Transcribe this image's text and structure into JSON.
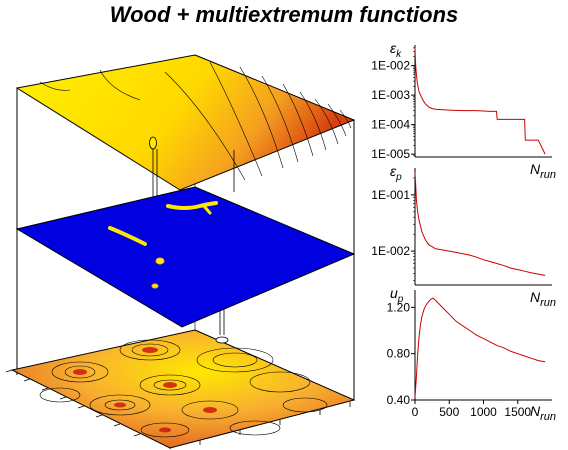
{
  "title": "Wood + multiextremum functions",
  "colors": {
    "surface_yellow": "#ffe800",
    "surface_orange": "#f08a1a",
    "surface_red": "#d84010",
    "plane_blue": "#0000e0",
    "curve_red": "#cc0000"
  },
  "chart_data": [
    {
      "type": "line",
      "panel": "top",
      "ylabel": "εk",
      "ylabel_main": "ε",
      "ylabel_sub": "k",
      "xlabel": "N",
      "xlabel_sub": "run",
      "y_scale": "log",
      "ylim": [
        8e-06,
        0.05
      ],
      "yticks": [
        0.01,
        0.001,
        0.0001,
        1e-05
      ],
      "ytick_labels": [
        "1E-002",
        "1E-003",
        "1E-004",
        "1E-005"
      ],
      "xlim": [
        0,
        2000
      ],
      "series": [
        {
          "x": [
            0,
            5,
            10,
            20,
            30,
            40,
            50,
            60,
            80,
            100,
            130,
            160,
            200,
            250,
            300,
            400,
            500,
            700,
            800,
            900,
            1000,
            1100,
            1190,
            1200,
            1400,
            1500,
            1600,
            1610,
            1800,
            1900
          ],
          "y": [
            0.04,
            0.02,
            0.01,
            0.005,
            0.003,
            0.0022,
            0.0017,
            0.0013,
            0.001,
            0.0008,
            0.0006,
            0.00048,
            0.0004,
            0.00035,
            0.00033,
            0.00032,
            0.00031,
            0.0003,
            0.0003,
            0.0003,
            0.00029,
            0.00028,
            0.00028,
            0.00015,
            0.00015,
            0.00015,
            0.00015,
            3e-05,
            3e-05,
            1e-05
          ]
        }
      ]
    },
    {
      "type": "line",
      "panel": "middle",
      "ylabel": "εp",
      "ylabel_main": "ε",
      "ylabel_sub": "p",
      "xlabel": "N",
      "xlabel_sub": "run",
      "y_scale": "log",
      "ylim": [
        0.0025,
        0.3
      ],
      "yticks": [
        0.1,
        0.01
      ],
      "ytick_labels": [
        "1E-001",
        "1E-002"
      ],
      "xlim": [
        0,
        2000
      ],
      "series": [
        {
          "x": [
            0,
            10,
            20,
            40,
            60,
            80,
            100,
            150,
            200,
            250,
            300,
            400,
            500,
            600,
            700,
            800,
            900,
            1000,
            1100,
            1200,
            1300,
            1400,
            1500,
            1600,
            1700,
            1800,
            1900
          ],
          "y": [
            0.25,
            0.15,
            0.08,
            0.05,
            0.035,
            0.028,
            0.022,
            0.016,
            0.013,
            0.012,
            0.011,
            0.0105,
            0.01,
            0.0095,
            0.009,
            0.0085,
            0.0078,
            0.007,
            0.0065,
            0.006,
            0.0055,
            0.005,
            0.0047,
            0.0044,
            0.0041,
            0.0039,
            0.0037
          ]
        }
      ]
    },
    {
      "type": "line",
      "panel": "bottom",
      "ylabel": "up",
      "ylabel_main": "u",
      "ylabel_sub": "p",
      "xlabel": "N",
      "xlabel_sub": "run",
      "ylim": [
        0.4,
        1.35
      ],
      "yticks": [
        1.2,
        0.8,
        0.4
      ],
      "ytick_labels": [
        "1.20",
        "0.80",
        "0.40"
      ],
      "xlim": [
        0,
        2000
      ],
      "xticks": [
        0,
        500,
        1000,
        1500
      ],
      "xtick_labels": [
        "0",
        "500",
        "1000",
        "1500"
      ],
      "series": [
        {
          "x": [
            0,
            20,
            40,
            60,
            80,
            100,
            130,
            160,
            200,
            230,
            260,
            300,
            400,
            500,
            600,
            700,
            800,
            900,
            1000,
            1100,
            1200,
            1300,
            1400,
            1500,
            1600,
            1700,
            1800,
            1900
          ],
          "y": [
            0.42,
            0.6,
            0.8,
            0.95,
            1.05,
            1.12,
            1.18,
            1.22,
            1.25,
            1.27,
            1.28,
            1.26,
            1.2,
            1.14,
            1.08,
            1.04,
            1.0,
            0.96,
            0.93,
            0.9,
            0.87,
            0.85,
            0.82,
            0.8,
            0.78,
            0.76,
            0.74,
            0.73
          ]
        }
      ]
    }
  ]
}
